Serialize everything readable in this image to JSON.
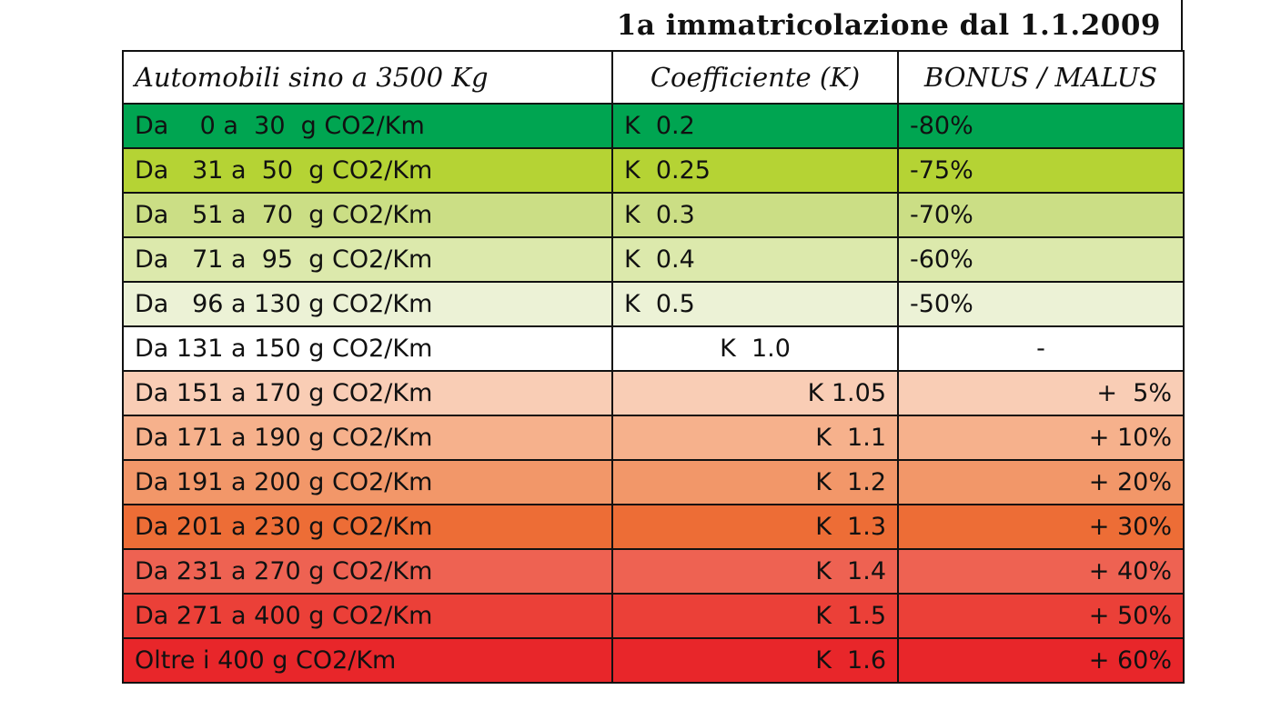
{
  "title": "1a immatricolazione dal 1.1.2009",
  "headers": [
    "Automobili sino a 3500 Kg",
    "Coefficiente (K)",
    "BONUS / MALUS"
  ],
  "rows": [
    {
      "range": "Da    0 a  30  g CO2/Km",
      "k": "K  0.2",
      "bm": "-80%",
      "color": "#00a551",
      "align_k": "left",
      "align_bm": "left"
    },
    {
      "range": "Da   31 a  50  g CO2/Km",
      "k": "K  0.25",
      "bm": "-75%",
      "color": "#b5d334",
      "align_k": "left",
      "align_bm": "left"
    },
    {
      "range": "Da   51 a  70  g CO2/Km",
      "k": "K  0.3",
      "bm": "-70%",
      "color": "#cbde85",
      "align_k": "left",
      "align_bm": "left"
    },
    {
      "range": "Da   71 a  95  g CO2/Km",
      "k": "K  0.4",
      "bm": "-60%",
      "color": "#dce9ac",
      "align_k": "left",
      "align_bm": "left"
    },
    {
      "range": "Da   96 a 130 g CO2/Km",
      "k": "K  0.5",
      "bm": "-50%",
      "color": "#ecf2d6",
      "align_k": "left",
      "align_bm": "left"
    },
    {
      "range": "Da 131 a 150 g CO2/Km",
      "k": "K  1.0",
      "bm": "-",
      "color": "#ffffff",
      "align_k": "center",
      "align_bm": "center"
    },
    {
      "range": "Da 151 a 170 g CO2/Km",
      "k": "K 1.05",
      "bm": "+  5%",
      "color": "#f9cdb5",
      "align_k": "right",
      "align_bm": "right"
    },
    {
      "range": "Da 171 a 190 g CO2/Km",
      "k": "K  1.1",
      "bm": "+ 10%",
      "color": "#f6b18c",
      "align_k": "right",
      "align_bm": "right"
    },
    {
      "range": "Da 191 a 200 g CO2/Km",
      "k": "K  1.2",
      "bm": "+ 20%",
      "color": "#f29769",
      "align_k": "right",
      "align_bm": "right"
    },
    {
      "range": "Da 201 a 230 g CO2/Km",
      "k": "K  1.3",
      "bm": "+ 30%",
      "color": "#ed6d36",
      "align_k": "right",
      "align_bm": "right"
    },
    {
      "range": "Da 231 a 270 g CO2/Km",
      "k": "K  1.4",
      "bm": "+ 40%",
      "color": "#ee6252",
      "align_k": "right",
      "align_bm": "right"
    },
    {
      "range": "Da 271 a 400 g CO2/Km",
      "k": "K  1.5",
      "bm": "+ 50%",
      "color": "#eb4038",
      "align_k": "right",
      "align_bm": "right"
    },
    {
      "range": "Oltre i 400 g CO2/Km",
      "k": "K  1.6",
      "bm": "+ 60%",
      "color": "#e8262a",
      "align_k": "right",
      "align_bm": "right"
    }
  ]
}
